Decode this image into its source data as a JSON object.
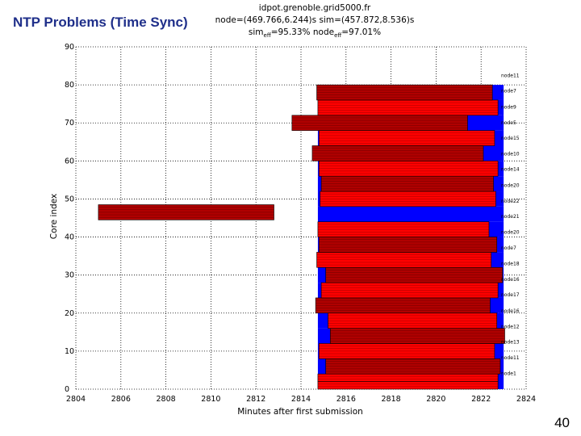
{
  "slide": {
    "title": "NTP Problems (Time Sync)",
    "page_number": "40"
  },
  "header": {
    "host": "idpot.grenoble.grid5000.fr",
    "line2": "node=(469.766,6.244)s sim=(457.872,8.536)s",
    "sim_prefix": "sim",
    "sim_sub": "eff",
    "sim_value": "=95.33% node",
    "node_sub": "eff",
    "node_value": "=97.01%"
  },
  "chart_data": {
    "type": "bar",
    "orientation": "horizontal",
    "title": "",
    "xlabel": "Minutes after first submission",
    "ylabel": "Core index",
    "xlim": [
      2804,
      2824
    ],
    "ylim": [
      0,
      90
    ],
    "xticks": [
      "2804",
      "2806",
      "2808",
      "2810",
      "2812",
      "2814",
      "2816",
      "2818",
      "2820",
      "2822",
      "2824"
    ],
    "yticks": [
      "0",
      "10",
      "20",
      "30",
      "40",
      "50",
      "60",
      "70",
      "80",
      "90"
    ],
    "grid": true,
    "colors": {
      "background_span": "#0000ff",
      "bar_red": "#ff0000",
      "bar_dark": "#b00000",
      "stripe": "#000000",
      "grid": "#000000",
      "title": "#1f2f8a"
    },
    "node_labels": [
      {
        "label": "node11",
        "core": 82.5
      },
      {
        "label": "node7",
        "core": 78.4
      },
      {
        "label": "node9",
        "core": 74.2
      },
      {
        "label": "node5",
        "core": 70.1
      },
      {
        "label": "node15",
        "core": 66.0
      },
      {
        "label": "node10",
        "core": 61.9
      },
      {
        "label": "node14",
        "core": 57.8
      },
      {
        "label": "node20",
        "core": 53.6
      },
      {
        "label": "node22",
        "core": 49.5
      },
      {
        "label": "node21",
        "core": 45.4
      },
      {
        "label": "node20",
        "core": 41.3
      },
      {
        "label": "node7",
        "core": 37.1
      },
      {
        "label": "node18",
        "core": 33.0
      },
      {
        "label": "node16",
        "core": 28.9
      },
      {
        "label": "node17",
        "core": 24.8
      },
      {
        "label": "node16",
        "core": 20.6
      },
      {
        "label": "node12",
        "core": 16.5
      },
      {
        "label": "node13",
        "core": 12.4
      },
      {
        "label": "node11",
        "core": 8.3
      },
      {
        "label": "node1",
        "core": 4.1
      }
    ],
    "node_spans": [
      {
        "y0": 0,
        "y1": 4,
        "start": 2814.75,
        "end": 2823.0
      },
      {
        "y0": 4,
        "y1": 8,
        "start": 2814.75,
        "end": 2823.0
      },
      {
        "y0": 8,
        "y1": 12,
        "start": 2814.75,
        "end": 2823.0
      },
      {
        "y0": 12,
        "y1": 16,
        "start": 2814.75,
        "end": 2823.0
      },
      {
        "y0": 16,
        "y1": 20,
        "start": 2814.75,
        "end": 2823.0
      },
      {
        "y0": 20,
        "y1": 24,
        "start": 2814.75,
        "end": 2823.0
      },
      {
        "y0": 24,
        "y1": 28,
        "start": 2814.75,
        "end": 2823.0
      },
      {
        "y0": 28,
        "y1": 32,
        "start": 2814.75,
        "end": 2823.0
      },
      {
        "y0": 32,
        "y1": 36,
        "start": 2814.75,
        "end": 2823.0
      },
      {
        "y0": 36,
        "y1": 40,
        "start": 2814.75,
        "end": 2823.0
      },
      {
        "y0": 40,
        "y1": 44,
        "start": 2814.75,
        "end": 2823.0
      },
      {
        "y0": 44,
        "y1": 48,
        "start": 2814.75,
        "end": 2823.0
      },
      {
        "y0": 48,
        "y1": 52,
        "start": 2814.75,
        "end": 2823.0
      },
      {
        "y0": 52,
        "y1": 56,
        "start": 2814.75,
        "end": 2823.0
      },
      {
        "y0": 56,
        "y1": 60,
        "start": 2814.75,
        "end": 2823.0
      },
      {
        "y0": 60,
        "y1": 64,
        "start": 2814.75,
        "end": 2823.0
      },
      {
        "y0": 64,
        "y1": 68,
        "start": 2814.75,
        "end": 2823.0
      },
      {
        "y0": 68,
        "y1": 72,
        "start": 2814.75,
        "end": 2823.0
      },
      {
        "y0": 72,
        "y1": 76,
        "start": 2814.75,
        "end": 2823.0
      },
      {
        "y0": 76,
        "y1": 80,
        "start": 2814.75,
        "end": 2823.0
      }
    ],
    "bars": [
      {
        "y0": 0.0,
        "y1": 2.0,
        "start": 2814.75,
        "end": 2822.75,
        "color": "bar_red"
      },
      {
        "y0": 2.0,
        "y1": 4.0,
        "start": 2814.75,
        "end": 2822.75,
        "color": "bar_red"
      },
      {
        "y0": 4.0,
        "y1": 8.0,
        "start": 2815.1,
        "end": 2822.85,
        "color": "bar_dark"
      },
      {
        "y0": 8.0,
        "y1": 12.0,
        "start": 2814.8,
        "end": 2822.6,
        "color": "bar_red"
      },
      {
        "y0": 12.0,
        "y1": 16.0,
        "start": 2815.3,
        "end": 2823.05,
        "color": "bar_dark"
      },
      {
        "y0": 16.0,
        "y1": 20.0,
        "start": 2815.2,
        "end": 2822.7,
        "color": "bar_red"
      },
      {
        "y0": 20.0,
        "y1": 24.0,
        "start": 2814.65,
        "end": 2822.4,
        "color": "bar_dark"
      },
      {
        "y0": 24.0,
        "y1": 28.0,
        "start": 2814.9,
        "end": 2822.75,
        "color": "bar_red"
      },
      {
        "y0": 28.0,
        "y1": 32.0,
        "start": 2815.1,
        "end": 2822.95,
        "color": "bar_dark"
      },
      {
        "y0": 32.0,
        "y1": 36.0,
        "start": 2814.7,
        "end": 2822.45,
        "color": "bar_red"
      },
      {
        "y0": 36.0,
        "y1": 40.0,
        "start": 2814.8,
        "end": 2822.7,
        "color": "bar_dark"
      },
      {
        "y0": 40.0,
        "y1": 44.0,
        "start": 2814.75,
        "end": 2822.35,
        "color": "bar_red"
      },
      {
        "y0": 44.5,
        "y1": 48.5,
        "start": 2805.0,
        "end": 2812.8,
        "color": "bar_dark"
      },
      {
        "y0": 48.0,
        "y1": 52.0,
        "start": 2814.85,
        "end": 2822.65,
        "color": "bar_red"
      },
      {
        "y0": 52.0,
        "y1": 56.0,
        "start": 2814.9,
        "end": 2822.55,
        "color": "bar_dark"
      },
      {
        "y0": 56.0,
        "y1": 60.0,
        "start": 2814.8,
        "end": 2822.75,
        "color": "bar_red"
      },
      {
        "y0": 60.0,
        "y1": 64.0,
        "start": 2814.5,
        "end": 2822.1,
        "color": "bar_dark"
      },
      {
        "y0": 64.0,
        "y1": 68.0,
        "start": 2814.8,
        "end": 2822.6,
        "color": "bar_red"
      },
      {
        "y0": 68.0,
        "y1": 72.0,
        "start": 2813.6,
        "end": 2821.4,
        "color": "bar_dark"
      },
      {
        "y0": 72.0,
        "y1": 76.0,
        "start": 2814.75,
        "end": 2822.75,
        "color": "bar_red"
      },
      {
        "y0": 76.0,
        "y1": 80.0,
        "start": 2814.7,
        "end": 2822.5,
        "color": "bar_dark"
      }
    ]
  }
}
